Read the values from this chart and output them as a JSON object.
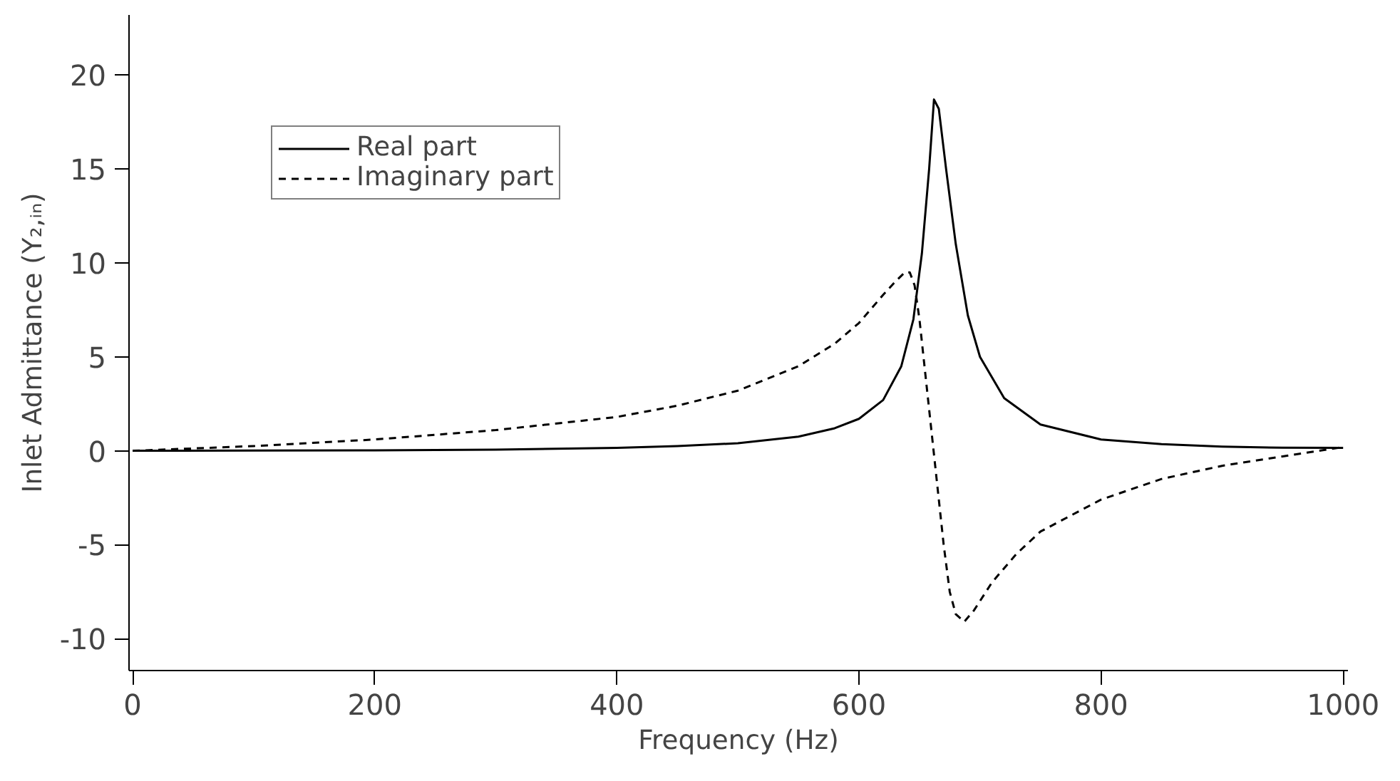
{
  "chart_data": {
    "type": "line",
    "xlabel": "Frequency (Hz)",
    "ylabel": "Inlet Admittance (Y₂,ᵢₙ)",
    "xlim": [
      -3,
      1004
    ],
    "ylim": [
      -11.7,
      23.2
    ],
    "xticks": [
      0,
      200,
      400,
      600,
      800,
      1000
    ],
    "yticks": [
      -10,
      -5,
      0,
      5,
      10,
      15,
      20
    ],
    "grid": false,
    "legend": "top left",
    "marker": "none",
    "series": [
      {
        "name": "Real part",
        "color": "#000000",
        "line_style": "solid",
        "x": [
          0,
          100,
          200,
          300,
          400,
          450,
          500,
          550,
          580,
          600,
          620,
          635,
          645,
          652,
          658,
          662,
          666,
          672,
          680,
          690,
          700,
          720,
          750,
          800,
          850,
          900,
          950,
          1000
        ],
        "values": [
          0,
          0.01,
          0.02,
          0.06,
          0.15,
          0.25,
          0.4,
          0.75,
          1.2,
          1.7,
          2.7,
          4.5,
          7,
          10.5,
          15,
          18.7,
          18.2,
          15,
          11,
          7.2,
          5,
          2.8,
          1.4,
          0.6,
          0.35,
          0.22,
          0.16,
          0.15
        ]
      },
      {
        "name": "Imaginary part",
        "color": "#000000",
        "line_style": "dashed",
        "x": [
          0,
          100,
          200,
          300,
          400,
          450,
          500,
          550,
          580,
          600,
          620,
          630,
          638,
          642,
          646,
          650,
          655,
          660,
          665,
          670,
          675,
          680,
          687,
          695,
          710,
          730,
          750,
          800,
          850,
          900,
          950,
          1000
        ],
        "values": [
          0,
          0.25,
          0.6,
          1.1,
          1.8,
          2.4,
          3.2,
          4.5,
          5.7,
          6.8,
          8.3,
          9,
          9.5,
          9.5,
          8.8,
          7,
          4,
          1,
          -2,
          -5,
          -7.5,
          -8.7,
          -9.1,
          -8.5,
          -7,
          -5.5,
          -4.3,
          -2.6,
          -1.5,
          -0.8,
          -0.3,
          0.2
        ]
      }
    ]
  }
}
